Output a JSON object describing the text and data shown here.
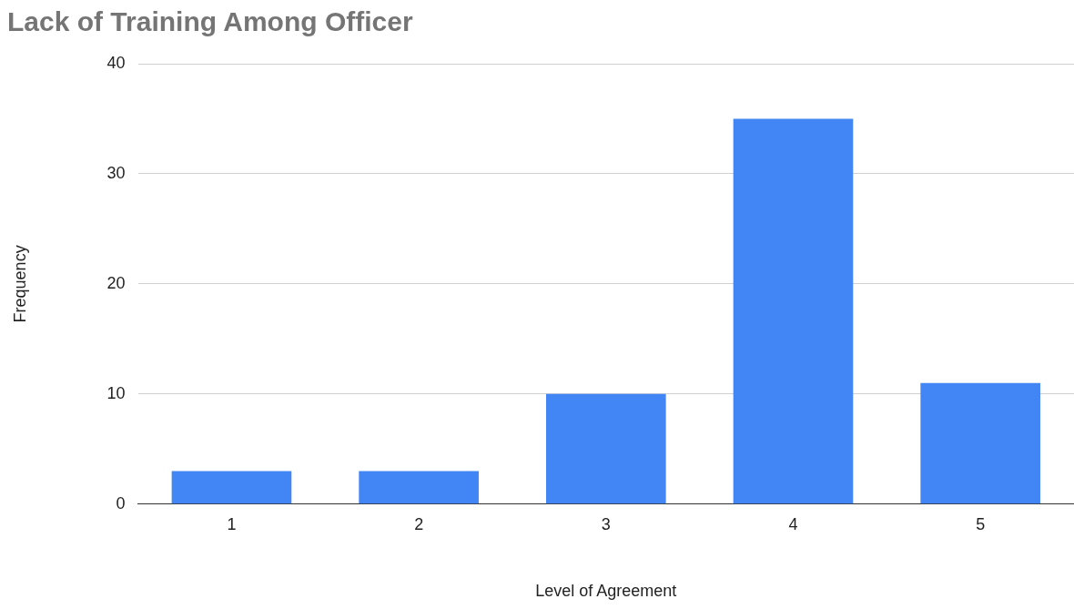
{
  "chart_data": {
    "type": "bar",
    "title": "Lack of Training Among Officer",
    "xlabel": "Level of Agreement",
    "ylabel": "Frequency",
    "categories": [
      "1",
      "2",
      "3",
      "4",
      "5"
    ],
    "values": [
      3,
      3,
      10,
      35,
      11
    ],
    "color": "#4285f4",
    "ylim": [
      0,
      40
    ],
    "yticks": [
      0,
      10,
      20,
      30,
      40
    ],
    "grid": "y",
    "legend": false
  }
}
